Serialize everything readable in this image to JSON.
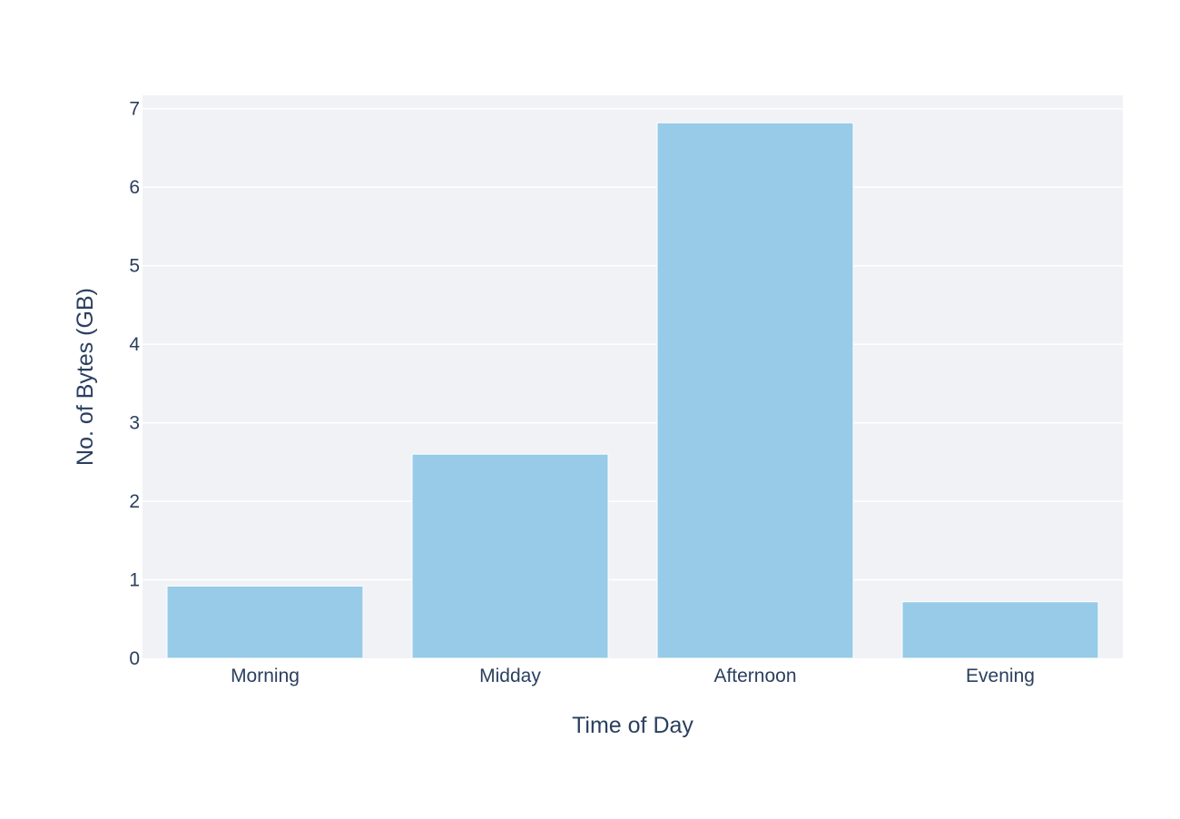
{
  "chart_data": {
    "type": "bar",
    "categories": [
      "Morning",
      "Midday",
      "Afternoon",
      "Evening"
    ],
    "values": [
      0.92,
      2.6,
      6.82,
      0.72
    ],
    "title": "",
    "xlabel": "Time of Day",
    "ylabel": "No. of Bytes (GB)",
    "ylim": [
      0,
      7.17
    ],
    "yticks": [
      0,
      1,
      2,
      3,
      4,
      5,
      6,
      7
    ],
    "grid": true,
    "colors": {
      "bar": "#97cbe7",
      "plot_bg": "#f0f2f6",
      "grid": "#ffffff",
      "text": "#2a3f5f"
    }
  }
}
